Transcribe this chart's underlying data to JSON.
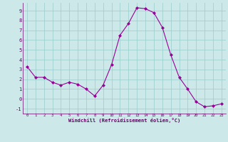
{
  "x": [
    0,
    1,
    2,
    3,
    4,
    5,
    6,
    7,
    8,
    9,
    10,
    11,
    12,
    13,
    14,
    15,
    16,
    17,
    18,
    19,
    20,
    21,
    22,
    23
  ],
  "y": [
    3.3,
    2.2,
    2.2,
    1.7,
    1.4,
    1.7,
    1.5,
    1.0,
    0.3,
    1.4,
    3.5,
    6.5,
    7.7,
    9.3,
    9.2,
    8.8,
    7.3,
    4.5,
    2.2,
    1.0,
    -0.3,
    -0.8,
    -0.7,
    -0.5
  ],
  "line_color": "#990099",
  "marker": "D",
  "marker_size": 2,
  "bg_color": "#cce8e8",
  "grid_color": "#99cccc",
  "xlabel": "Windchill (Refroidissement éolien,°C)",
  "xlabel_color": "#660066",
  "tick_color": "#660066",
  "ylim": [
    -1.5,
    9.8
  ],
  "xlim": [
    -0.5,
    23.5
  ],
  "yticks": [
    -1,
    0,
    1,
    2,
    3,
    4,
    5,
    6,
    7,
    8,
    9
  ],
  "xticks": [
    0,
    1,
    2,
    3,
    4,
    5,
    6,
    7,
    8,
    9,
    10,
    11,
    12,
    13,
    14,
    15,
    16,
    17,
    18,
    19,
    20,
    21,
    22,
    23
  ]
}
